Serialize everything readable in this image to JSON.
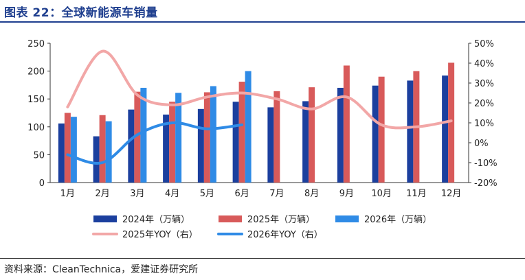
{
  "header": {
    "title": "图表 22：全球新能源车销量"
  },
  "footer": {
    "source": "资料来源：CleanTechnica，爱建证券研究所"
  },
  "chart_data": {
    "type": "bar",
    "title": "",
    "categories": [
      "1月",
      "2月",
      "3月",
      "4月",
      "5月",
      "6月",
      "7月",
      "8月",
      "9月",
      "10月",
      "11月",
      "12月"
    ],
    "y_left": {
      "ylim": [
        0,
        250
      ],
      "ticks": [
        0,
        50,
        100,
        150,
        200,
        250
      ]
    },
    "y_right": {
      "ylim": [
        -20,
        50
      ],
      "ticks": [
        -20,
        -10,
        0,
        10,
        20,
        30,
        40,
        50
      ],
      "tick_labels": [
        "-20%",
        "-10%",
        "0%",
        "10%",
        "20%",
        "30%",
        "40%",
        "50%"
      ]
    },
    "grid": false,
    "legend_position": "bottom",
    "series": [
      {
        "name": "2024年（万辆）",
        "kind": "bar",
        "axis": "left",
        "color": "#1b3f9e",
        "values": [
          106,
          83,
          131,
          122,
          132,
          145,
          135,
          146,
          170,
          174,
          183,
          192
        ]
      },
      {
        "name": "2025年（万辆）",
        "kind": "bar",
        "axis": "left",
        "color": "#d85a5a",
        "values": [
          125,
          121,
          163,
          145,
          162,
          181,
          164,
          171,
          210,
          190,
          200,
          215
        ]
      },
      {
        "name": "2026年（万辆）",
        "kind": "bar",
        "axis": "left",
        "color": "#2f8be6",
        "values": [
          118,
          110,
          170,
          161,
          173,
          200,
          null,
          null,
          null,
          null,
          null,
          null
        ]
      },
      {
        "name": "2025年YOY（右）",
        "kind": "line",
        "axis": "right",
        "color": "#f2a7a7",
        "values": [
          18,
          46,
          24,
          19,
          23,
          25,
          22,
          17,
          23,
          9,
          8,
          11
        ]
      },
      {
        "name": "2026年YOY（右）",
        "kind": "line",
        "axis": "right",
        "color": "#2f8be6",
        "values": [
          -6,
          -10,
          4,
          10,
          7,
          9,
          null,
          null,
          null,
          null,
          null,
          null
        ]
      }
    ]
  }
}
